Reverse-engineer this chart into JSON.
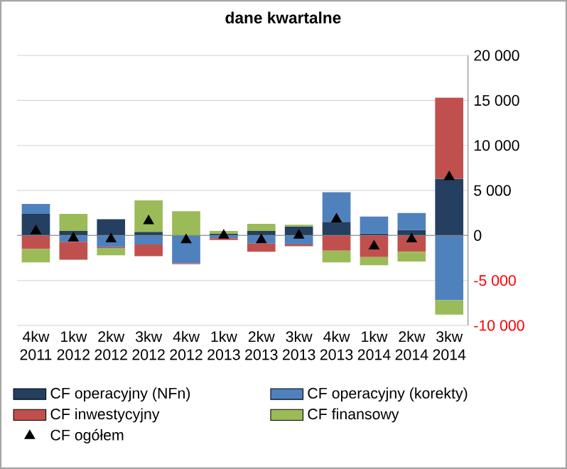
{
  "chart_data": {
    "type": "bar",
    "stacked": true,
    "title": "dane kwartalne",
    "categories": [
      "4kw 2011",
      "1kw 2012",
      "2kw 2012",
      "3kw 2012",
      "4kw 2012",
      "1kw 2013",
      "2kw 2013",
      "3kw 2013",
      "4kw 2013",
      "1kw 2014",
      "2kw 2014",
      "3kw 2014"
    ],
    "series": [
      {
        "name": "CF operacyjny (NFn)",
        "color": "#243f60",
        "values": [
          2400,
          500,
          1800,
          400,
          0,
          200,
          500,
          1000,
          1500,
          200,
          600,
          6300
        ]
      },
      {
        "name": "CF operacyjny (korekty)",
        "color": "#4f81bd",
        "values": [
          1100,
          -700,
          -1300,
          -1000,
          -3100,
          -300,
          -900,
          -1000,
          3300,
          1900,
          1900,
          -7200
        ]
      },
      {
        "name": "CF inwestycyjny",
        "color": "#c0504d",
        "values": [
          -1500,
          -2000,
          -100,
          -1300,
          -100,
          -200,
          -900,
          -200,
          -1700,
          -2400,
          -1800,
          9000
        ]
      },
      {
        "name": "CF finansowy",
        "color": "#9bbb59",
        "values": [
          -1500,
          1900,
          -800,
          3500,
          2700,
          300,
          800,
          200,
          -1300,
          -900,
          -1100,
          -1600
        ]
      },
      {
        "name": "CF ogółem",
        "type": "scatter",
        "color": "#000000",
        "marker": "triangle",
        "values": [
          500,
          -300,
          -400,
          1600,
          -500,
          0,
          -500,
          0,
          1800,
          -1200,
          -400,
          6500
        ]
      }
    ],
    "ylim": [
      -10000,
      20000
    ],
    "yticks": [
      {
        "value": -10000,
        "label": "-10 000"
      },
      {
        "value": -5000,
        "label": "-5 000"
      },
      {
        "value": 0,
        "label": "0"
      },
      {
        "value": 5000,
        "label": "5 000"
      },
      {
        "value": 10000,
        "label": "10 000"
      },
      {
        "value": 15000,
        "label": "15 000"
      },
      {
        "value": 20000,
        "label": "20 000"
      }
    ],
    "grid": "y",
    "legend": "bottom"
  }
}
